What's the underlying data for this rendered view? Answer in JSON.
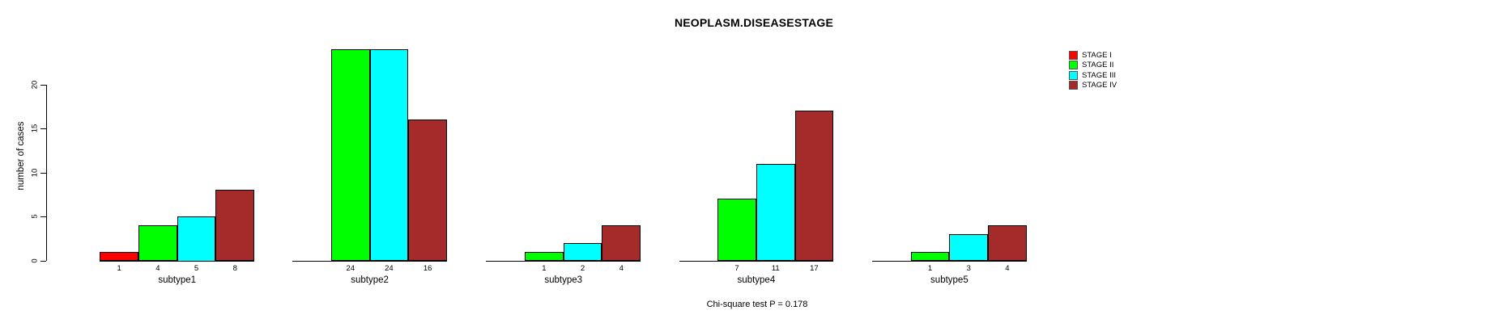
{
  "chart_data": {
    "type": "bar",
    "title": "NEOPLASM.DISEASESTAGE",
    "ylabel": "number of cases",
    "footer": "Chi-square test P = 0.178",
    "ylim": [
      0,
      24
    ],
    "yticks": [
      0,
      5,
      10,
      15,
      20
    ],
    "grid": false,
    "legend_position": "top-right",
    "categories": [
      "subtype1",
      "subtype2",
      "subtype3",
      "subtype4",
      "subtype5"
    ],
    "series": [
      {
        "name": "STAGE I",
        "color": "#FF0000",
        "values": [
          1,
          0,
          0,
          0,
          0
        ]
      },
      {
        "name": "STAGE II",
        "color": "#00FF00",
        "values": [
          4,
          24,
          1,
          7,
          1
        ]
      },
      {
        "name": "STAGE III",
        "color": "#00FFFF",
        "values": [
          5,
          24,
          2,
          11,
          3
        ]
      },
      {
        "name": "STAGE IV",
        "color": "#A52A2A",
        "values": [
          8,
          16,
          4,
          17,
          4
        ]
      }
    ],
    "notes": "zero-value bars are hidden but keep their slot; each bar's count is printed beneath it"
  }
}
